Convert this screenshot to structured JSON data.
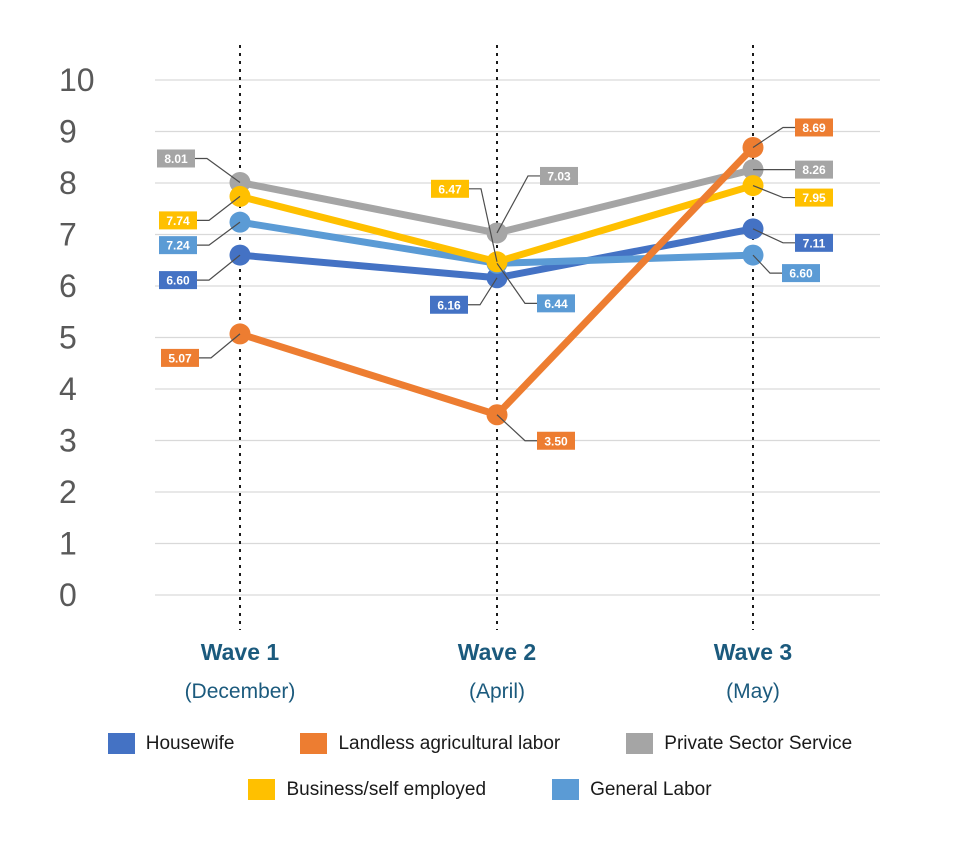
{
  "chart_data": {
    "type": "line",
    "title": "",
    "xlabel": "",
    "ylabel": "",
    "categories": [
      "Wave 1",
      "Wave 2",
      "Wave 3"
    ],
    "category_sublabels": [
      "(December)",
      "(April)",
      "(May)"
    ],
    "yticks": [
      "10",
      "9",
      "8",
      "7",
      "6",
      "5",
      "4",
      "3",
      "2",
      "1",
      "0"
    ],
    "ylim": [
      0,
      10
    ],
    "grid": true,
    "legend_position": "bottom",
    "data_labels": true,
    "series": [
      {
        "name": "Housewife",
        "color": "#4472C4",
        "values": [
          6.6,
          6.16,
          7.11
        ],
        "value_labels": [
          "6.60",
          "6.16",
          "7.11"
        ]
      },
      {
        "name": "Landless agricultural labor",
        "color": "#ED7D31",
        "values": [
          5.07,
          3.5,
          8.69
        ],
        "value_labels": [
          "5.07",
          "3.50",
          "8.69"
        ]
      },
      {
        "name": "Private Sector Service",
        "color": "#A5A5A5",
        "values": [
          8.01,
          7.03,
          8.26
        ],
        "value_labels": [
          "8.01",
          "7.03",
          "8.26"
        ]
      },
      {
        "name": "Business/self employed",
        "color": "#FFC000",
        "values": [
          7.74,
          6.47,
          7.95
        ],
        "value_labels": [
          "7.74",
          "6.47",
          "7.95"
        ]
      },
      {
        "name": "General Labor",
        "color": "#5B9BD5",
        "values": [
          7.24,
          6.44,
          6.6
        ],
        "value_labels": [
          "7.24",
          "6.44",
          "6.60"
        ]
      }
    ],
    "colors": {
      "background": "#FFFFFF",
      "gridline": "#D9D9D9",
      "ytick_text": "#595959",
      "xtick_text": "#1B5A7D",
      "dotted_guide": "#1A1A1A",
      "leader_line": "#4D4D4D",
      "data_label_text": "#FFFFFF",
      "legend_text": "#1A1A1A"
    }
  }
}
